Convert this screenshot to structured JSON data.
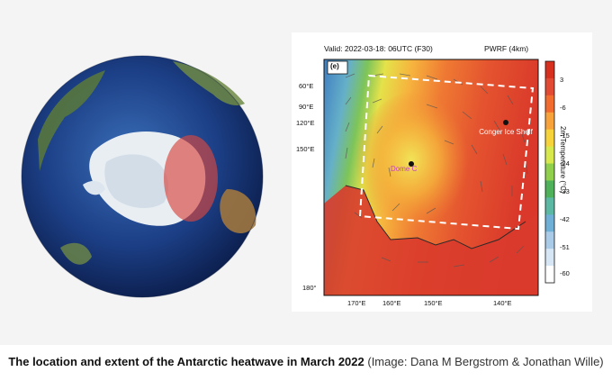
{
  "map": {
    "valid_time": "Valid: 2022-03-18: 06UTC (F30)",
    "model": "PWRF (4km)",
    "panel_tag": "(e)",
    "lat_labels": [
      "60°E",
      "90°E",
      "120°E",
      "150°E",
      "180°"
    ],
    "lon_labels": [
      "170°E",
      "160°E",
      "150°E",
      "140°E"
    ],
    "places": {
      "conger": "Conger Ice Shelf",
      "dome": "Dome C"
    },
    "colorbar": {
      "title": "2m Temperature (°C)",
      "ticks": [
        "3",
        "-6",
        "-15",
        "-24",
        "-33",
        "-42",
        "-51",
        "-60"
      ],
      "colors": [
        "#d7301f",
        "#e34a33",
        "#f26b2f",
        "#f7a23b",
        "#f6d33a",
        "#d6e84b",
        "#8fcf4c",
        "#4fb25a",
        "#5bb8a3",
        "#6fb0d6",
        "#a9cbe8",
        "#d7e6f4",
        "#ffffff"
      ]
    }
  },
  "caption": {
    "bold": "The location and extent of the Antarctic heatwave in March 2022",
    "rest": " (Image: Dana M Bergstrom & Jonathan Wille)"
  }
}
